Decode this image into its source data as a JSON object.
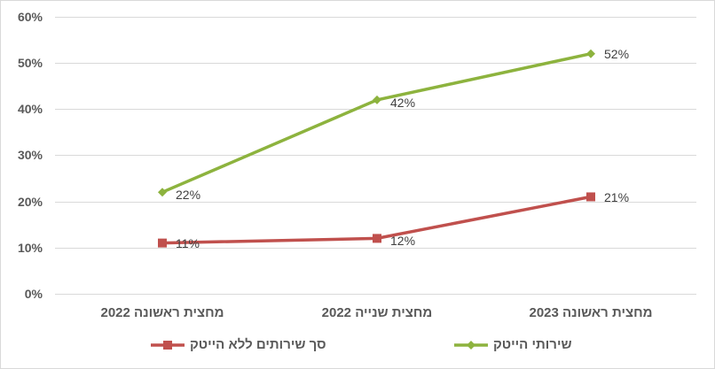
{
  "chart_data": {
    "type": "line",
    "title": "",
    "xlabel": "",
    "ylabel": "",
    "ylim": [
      0,
      0.6
    ],
    "yticks": [
      "0%",
      "10%",
      "20%",
      "30%",
      "40%",
      "50%",
      "60%"
    ],
    "grid": true,
    "legend_position": "bottom",
    "categories": [
      "מחצית ראשונה 2022",
      "מחצית שנייה 2022",
      "מחצית ראשונה 2023"
    ],
    "series": [
      {
        "name": "שירותי הייטק",
        "color": "#8db33e",
        "marker": "diamond",
        "values": [
          0.22,
          0.42,
          0.52
        ],
        "labels": [
          "22%",
          "42%",
          "52%"
        ]
      },
      {
        "name": "סך שירותים ללא הייטק",
        "color": "#c0504d",
        "marker": "square",
        "values": [
          0.11,
          0.12,
          0.21
        ],
        "labels": [
          "11%",
          "12%",
          "21%"
        ]
      }
    ]
  }
}
